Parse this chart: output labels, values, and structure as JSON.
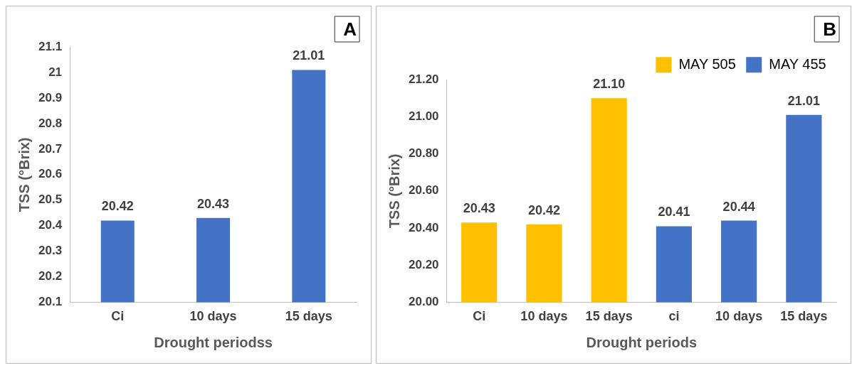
{
  "chart_data": [
    {
      "type": "bar",
      "title": "A",
      "xlabel": "Drought periodss",
      "ylabel": "TSS (°Brix)",
      "categories": [
        "Ci",
        "10 days",
        "15 days"
      ],
      "values": [
        20.42,
        20.43,
        21.01
      ],
      "color": "#4472c4",
      "ylim": [
        20.1,
        21.1
      ],
      "yticks": [
        20.1,
        20.2,
        20.3,
        20.4,
        20.5,
        20.6,
        20.7,
        20.8,
        20.9,
        21,
        21.1
      ],
      "grid": false,
      "data_labels": true,
      "legend": false
    },
    {
      "type": "bar",
      "title": "B",
      "xlabel": "Drought periods",
      "ylabel": "TSS (°Brix)",
      "categories": [
        "Ci",
        "10 days",
        "15 days",
        "ci",
        "10 days",
        "15 days"
      ],
      "series": [
        {
          "name": "MAY 505",
          "color": "#ffc000",
          "values": [
            20.43,
            20.42,
            21.1,
            null,
            null,
            null
          ],
          "value_labels": [
            "20.43",
            "20.42",
            "21.10",
            null,
            null,
            null
          ]
        },
        {
          "name": "MAY 455",
          "color": "#4472c4",
          "values": [
            null,
            null,
            null,
            20.41,
            20.44,
            21.01
          ],
          "value_labels": [
            null,
            null,
            null,
            "20.41",
            "20.44",
            "21.01"
          ]
        }
      ],
      "ylim": [
        20,
        21.2
      ],
      "yticks": [
        {
          "value": 20,
          "label": "20.00"
        },
        {
          "value": 20.2,
          "label": "20.20"
        },
        {
          "value": 20.4,
          "label": "20.40"
        },
        {
          "value": 20.6,
          "label": "20.60"
        },
        {
          "value": 20.8,
          "label": "20.80"
        },
        {
          "value": 21,
          "label": "21.00"
        },
        {
          "value": 21.2,
          "label": "21.20"
        }
      ],
      "grid": false,
      "legend": "top right"
    }
  ]
}
